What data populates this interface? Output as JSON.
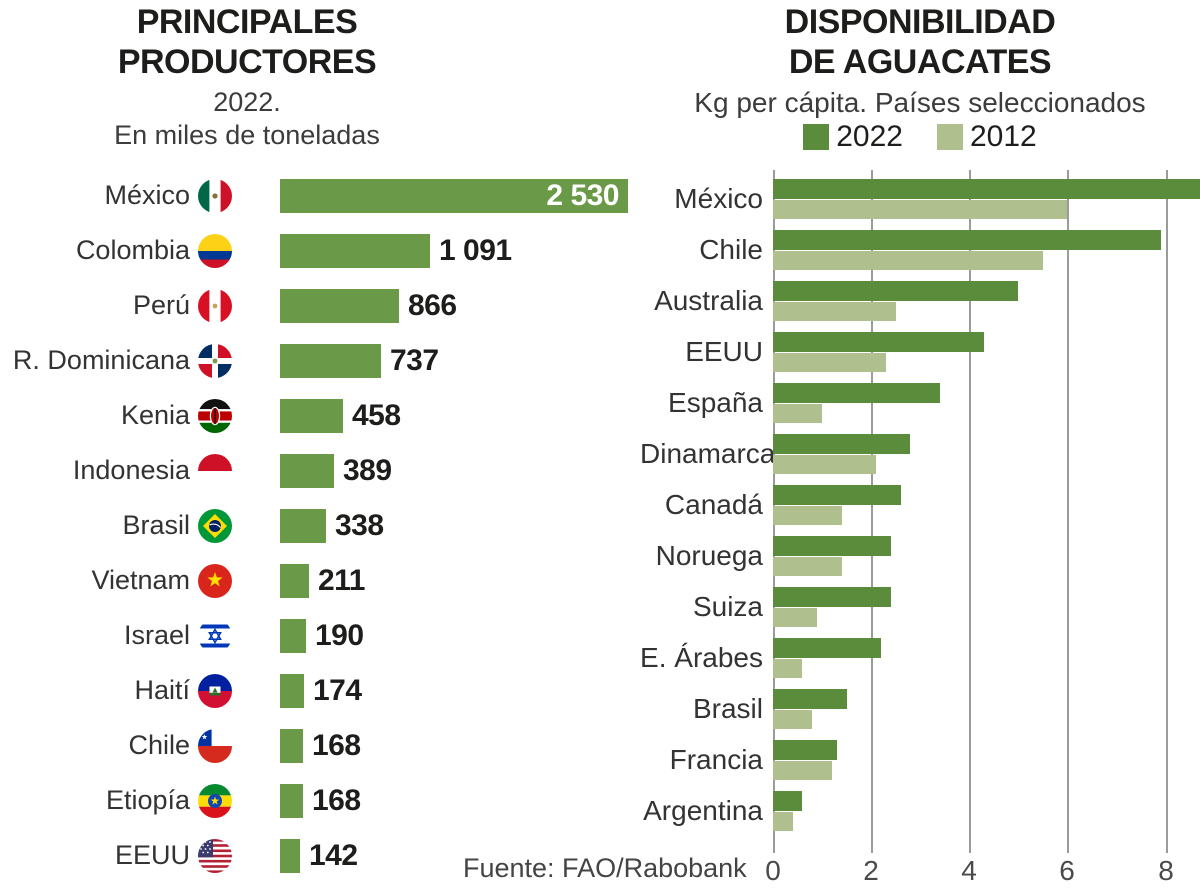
{
  "source_note": "Fuente: FAO/Rabobank",
  "chart_data": [
    {
      "type": "bar",
      "orientation": "horizontal",
      "title": "PRINCIPALES PRODUCTORES",
      "title_lines": [
        "PRINCIPALES",
        "PRODUCTORES"
      ],
      "subtitle_lines": [
        "2022.",
        "En miles de toneladas"
      ],
      "ylabel": "",
      "xlabel": "miles de toneladas",
      "xlim": [
        0,
        2530
      ],
      "grid": false,
      "bar_color": "#6a9a47",
      "rows": [
        {
          "country": "México",
          "flag": "mexico",
          "value": 2530,
          "value_label": "2 530",
          "label_inside": true
        },
        {
          "country": "Colombia",
          "flag": "colombia",
          "value": 1091,
          "value_label": "1 091",
          "label_inside": false
        },
        {
          "country": "Perú",
          "flag": "peru",
          "value": 866,
          "value_label": "866",
          "label_inside": false
        },
        {
          "country": "R. Dominicana",
          "flag": "dominicana",
          "value": 737,
          "value_label": "737",
          "label_inside": false
        },
        {
          "country": "Kenia",
          "flag": "kenia",
          "value": 458,
          "value_label": "458",
          "label_inside": false
        },
        {
          "country": "Indonesia",
          "flag": "indonesia",
          "value": 389,
          "value_label": "389",
          "label_inside": false
        },
        {
          "country": "Brasil",
          "flag": "brasil",
          "value": 338,
          "value_label": "338",
          "label_inside": false
        },
        {
          "country": "Vietnam",
          "flag": "vietnam",
          "value": 211,
          "value_label": "211",
          "label_inside": false
        },
        {
          "country": "Israel",
          "flag": "israel",
          "value": 190,
          "value_label": "190",
          "label_inside": false
        },
        {
          "country": "Haití",
          "flag": "haiti",
          "value": 174,
          "value_label": "174",
          "label_inside": false
        },
        {
          "country": "Chile",
          "flag": "chile",
          "value": 168,
          "value_label": "168",
          "label_inside": false
        },
        {
          "country": "Etiopía",
          "flag": "etiopia",
          "value": 168,
          "value_label": "168",
          "label_inside": false
        },
        {
          "country": "EEUU",
          "flag": "eeuu",
          "value": 142,
          "value_label": "142",
          "label_inside": false
        }
      ]
    },
    {
      "type": "bar",
      "orientation": "horizontal",
      "grouped": true,
      "title": "DISPONIBILIDAD DE AGUACATES",
      "title_lines": [
        "DISPONIBILIDAD",
        "DE AGUACATES"
      ],
      "subtitle": "Kg per cápita. Países seleccionados",
      "legend_position": "top",
      "grid": true,
      "xticks": [
        0,
        2,
        4,
        6,
        8
      ],
      "xlim": [
        0,
        8.7
      ],
      "categories": [
        "México",
        "Chile",
        "Australia",
        "EEUU",
        "España",
        "Dinamarca",
        "Canadá",
        "Noruega",
        "Suiza",
        "E. Árabes",
        "Brasil",
        "Francia",
        "Argentina"
      ],
      "series": [
        {
          "name": "2022",
          "color": "#5a8c3c",
          "values": [
            8.7,
            7.9,
            5.0,
            4.3,
            3.4,
            2.8,
            2.6,
            2.4,
            2.4,
            2.2,
            1.5,
            1.3,
            0.6
          ]
        },
        {
          "name": "2012",
          "color": "#afc08e",
          "values": [
            6.0,
            5.5,
            2.5,
            2.3,
            1.0,
            2.1,
            1.4,
            1.4,
            0.9,
            0.6,
            0.8,
            1.2,
            0.4
          ]
        }
      ]
    }
  ]
}
